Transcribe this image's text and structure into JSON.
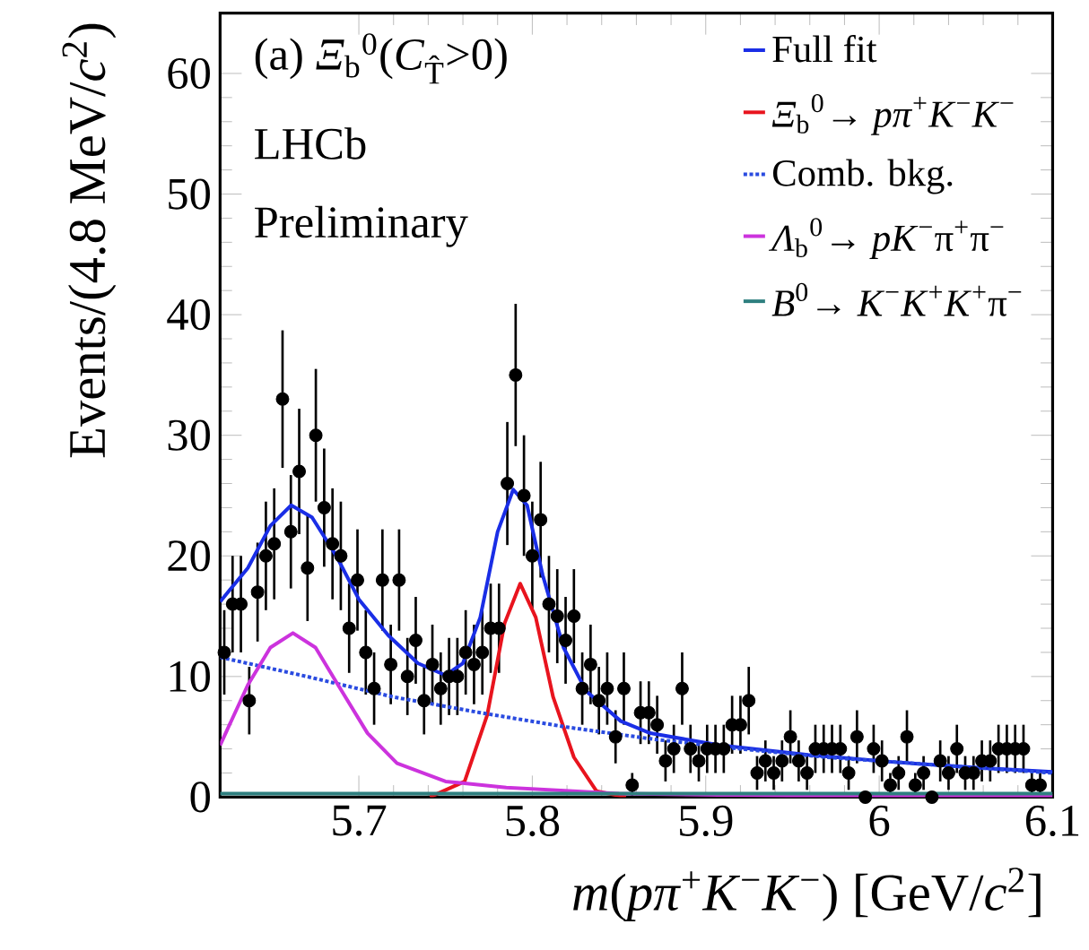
{
  "chart_data": {
    "type": "scatter",
    "xlabel": "*m*(*pπ*$^{+}$*K*$^{−}$*K*$^{−}$) [GeV/*c*$^{2}$]",
    "ylabel": "Events/(4.8 MeV/*c*$^{2}$)",
    "annotations": [
      "(a) *Ξ*$_{b}$$^{0}$(*C*$_{T̂}$>0)",
      "LHCb",
      "Preliminary"
    ],
    "xlim": [
      5.62,
      6.1
    ],
    "ylim": [
      0,
      65
    ],
    "xticks": [
      5.7,
      5.8,
      5.9,
      6,
      6.1
    ],
    "yticks": [
      0,
      10,
      20,
      30,
      40,
      50,
      60
    ],
    "legend": "top right",
    "series": [
      {
        "marker": "circle",
        "color": "#000000",
        "x": [
          5.6224,
          5.6272,
          5.632,
          5.6368,
          5.6416,
          5.6464,
          5.6512,
          5.656,
          5.6608,
          5.6656,
          5.6704,
          5.6752,
          5.68,
          5.6848,
          5.6896,
          5.6944,
          5.6992,
          5.704,
          5.7088,
          5.7136,
          5.7184,
          5.7232,
          5.728,
          5.7328,
          5.7376,
          5.7424,
          5.7472,
          5.752,
          5.7568,
          5.7616,
          5.7664,
          5.7712,
          5.776,
          5.7808,
          5.7856,
          5.7904,
          5.7952,
          5.8,
          5.8048,
          5.8096,
          5.8144,
          5.8192,
          5.824,
          5.8288,
          5.8336,
          5.8384,
          5.8432,
          5.848,
          5.8528,
          5.8576,
          5.8624,
          5.8672,
          5.872,
          5.8768,
          5.8816,
          5.8864,
          5.8912,
          5.896,
          5.9008,
          5.9056,
          5.9104,
          5.9152,
          5.92,
          5.9248,
          5.9296,
          5.9344,
          5.9392,
          5.944,
          5.9488,
          5.9536,
          5.9584,
          5.9632,
          5.968,
          5.9728,
          5.9776,
          5.9824,
          5.9872,
          5.992,
          5.9968,
          6.0016,
          6.0064,
          6.0112,
          6.016,
          6.0208,
          6.0256,
          6.0304,
          6.0352,
          6.04,
          6.0448,
          6.0496,
          6.0544,
          6.0592,
          6.064,
          6.0688,
          6.0736,
          6.0784,
          6.0832,
          6.088,
          6.0928
        ],
        "values": [
          12,
          16,
          16,
          8,
          17,
          20,
          21,
          33,
          22,
          27,
          19,
          30,
          24,
          21,
          20,
          14,
          18,
          12,
          9,
          18,
          11,
          18,
          10,
          13,
          8,
          11,
          9,
          10,
          10,
          12,
          11,
          12,
          14,
          14,
          26,
          35,
          25,
          20,
          23,
          16,
          15,
          13,
          15,
          9,
          11,
          8,
          9,
          5,
          9,
          1,
          7,
          7,
          6,
          3,
          4,
          9,
          4,
          3,
          4,
          4,
          4,
          6,
          6,
          8,
          2,
          3,
          2,
          3,
          5,
          3,
          2,
          4,
          4,
          4,
          4,
          2,
          5,
          0,
          4,
          3,
          1,
          2,
          5,
          1,
          2,
          0,
          3,
          2,
          4,
          2,
          2,
          3,
          3,
          4,
          4,
          4,
          4,
          1,
          1
        ],
        "errors": [
          3.5,
          4,
          4,
          2.8,
          4.1,
          4.5,
          4.6,
          5.7,
          4.7,
          5.2,
          4.4,
          5.5,
          4.9,
          4.6,
          4.5,
          3.7,
          4.2,
          3.5,
          3,
          4.2,
          3.3,
          4.2,
          3.2,
          3.6,
          2.8,
          3.3,
          3,
          3.2,
          3.2,
          3.5,
          3.3,
          3.5,
          3.7,
          3.7,
          5.1,
          5.9,
          5,
          4.5,
          4.8,
          4,
          3.9,
          3.6,
          3.9,
          3,
          3.3,
          2.8,
          3,
          2.2,
          3,
          1,
          2.6,
          2.6,
          2.4,
          1.7,
          2,
          3,
          2,
          1.7,
          2,
          2,
          2,
          2.4,
          2.4,
          2.8,
          1.4,
          1.7,
          1.4,
          1.7,
          2.2,
          1.7,
          1.4,
          2,
          2,
          2,
          2,
          1.4,
          2.2,
          null,
          2,
          1.7,
          1,
          1.4,
          2.2,
          1,
          1.4,
          null,
          1.7,
          1.4,
          2,
          1.4,
          1.4,
          1.7,
          1.7,
          2,
          2,
          2,
          2,
          1,
          1
        ]
      },
      {
        "type": "line",
        "name": "Full fit",
        "color": "#1a2ee6",
        "line_style": "solid",
        "x": [
          5.62,
          5.636,
          5.649,
          5.661,
          5.673,
          5.687,
          5.7,
          5.717,
          5.734,
          5.75,
          5.76,
          5.77,
          5.78,
          5.789,
          5.797,
          5.806,
          5.818,
          5.831,
          5.851,
          5.868,
          5.908,
          5.959,
          6.009,
          6.06,
          6.1
        ],
        "values": [
          16.2,
          19,
          22.5,
          24.2,
          23.2,
          20,
          16.4,
          13.4,
          11.1,
          10.1,
          11.1,
          14.9,
          22,
          25.5,
          24.2,
          18.4,
          12.4,
          8.8,
          6.3,
          5.3,
          4.3,
          3.5,
          2.9,
          2.4,
          2.1
        ]
      },
      {
        "type": "line",
        "name": "*Ξ*$_{b}$$^{0}$→ *pπ*$^{+}$*K*$^{−}$*K*$^{−}$",
        "color": "#e8141e",
        "line_style": "solid",
        "x": [
          5.741,
          5.761,
          5.774,
          5.784,
          5.793,
          5.802,
          5.812,
          5.824,
          5.837,
          5.854
        ],
        "values": [
          0,
          1.3,
          6.8,
          14.4,
          17.7,
          14.9,
          8.3,
          3.3,
          0.5,
          0
        ]
      },
      {
        "type": "line",
        "name": "Comb. bkg.",
        "color": "#2a4be0",
        "line_style": "dotted",
        "x": [
          5.62,
          5.67,
          5.72,
          5.77,
          5.82,
          5.87,
          5.92,
          5.97,
          6.02,
          6.06,
          6.1
        ],
        "values": [
          11.6,
          10,
          8.3,
          7,
          5.8,
          4.8,
          4,
          3.3,
          2.8,
          2.4,
          2
        ]
      },
      {
        "type": "line",
        "name": "*Λ*$_{b}$$^{0}$→ *pK*$^{−}$π$^{+}$π$^{−}$",
        "color": "#cc33dd",
        "line_style": "solid",
        "x": [
          5.62,
          5.636,
          5.649,
          5.662,
          5.675,
          5.688,
          5.705,
          5.722,
          5.75,
          5.785,
          5.85,
          5.95,
          6.1
        ],
        "values": [
          4.3,
          9.3,
          12.4,
          13.6,
          12.4,
          9.3,
          5.3,
          2.8,
          1.3,
          0.8,
          0.3,
          0.1,
          0.1
        ]
      },
      {
        "type": "line",
        "name": "*B*$^{0}$→ *K*$^{−}$*K*$^{+}$*K*$^{+}$π$^{−}$",
        "color": "#2e7f7f",
        "line_style": "solid",
        "x": [
          5.62,
          5.8,
          6.1
        ],
        "values": [
          0.3,
          0.3,
          0.3
        ]
      }
    ]
  }
}
